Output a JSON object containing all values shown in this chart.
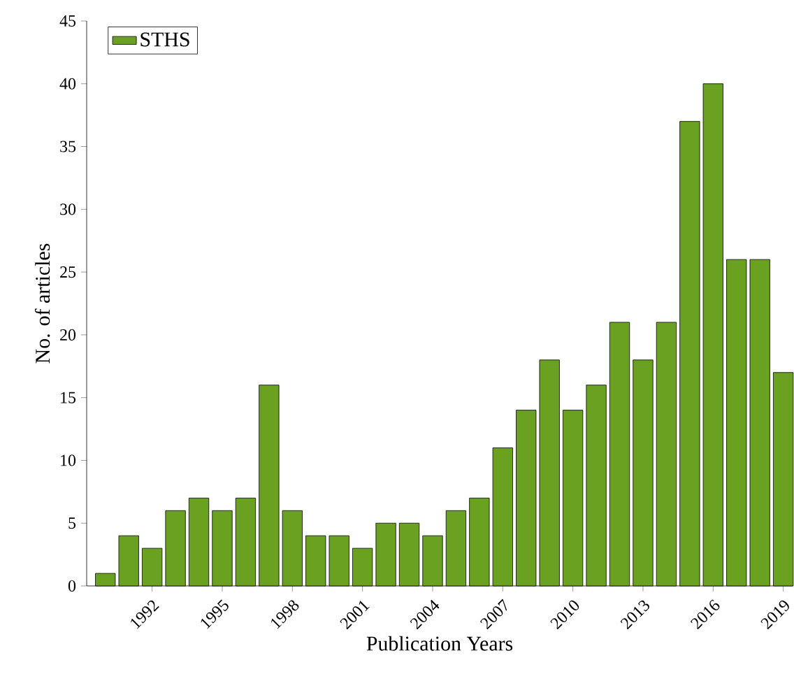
{
  "chart_data": {
    "type": "bar",
    "xlabel": "Publication Years",
    "ylabel": "No. of articles",
    "legend": "top left",
    "x": [
      1990,
      1991,
      1992,
      1993,
      1994,
      1995,
      1996,
      1997,
      1998,
      1999,
      2000,
      2001,
      2002,
      2003,
      2004,
      2005,
      2006,
      2007,
      2008,
      2009,
      2010,
      2011,
      2012,
      2013,
      2014,
      2015,
      2016,
      2017,
      2018,
      2019
    ],
    "series": [
      {
        "name": "STHS",
        "color": "#6aa121",
        "values": [
          1,
          4,
          3,
          6,
          7,
          6,
          7,
          16,
          6,
          4,
          4,
          3,
          5,
          5,
          4,
          6,
          7,
          11,
          14,
          18,
          14,
          16,
          21,
          18,
          21,
          37,
          40,
          26,
          26,
          17
        ]
      }
    ],
    "xlim": [
      1989.2,
      2019.4
    ],
    "xticks": [
      1992,
      1995,
      1998,
      2001,
      2004,
      2007,
      2010,
      2013,
      2016,
      2019
    ],
    "ylim": [
      0,
      45
    ],
    "yticks": [
      0,
      5,
      10,
      15,
      20,
      25,
      30,
      35,
      40,
      45
    ]
  }
}
